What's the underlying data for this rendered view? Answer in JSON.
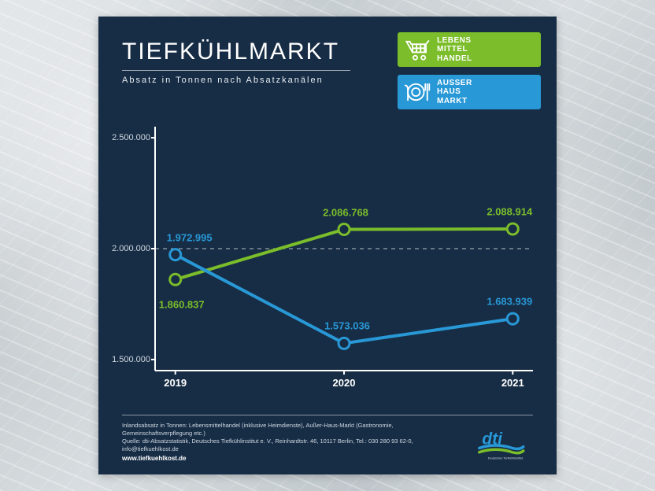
{
  "title": "TIEFKÜHLMARKT",
  "subtitle": "Absatz in Tonnen nach Absatzkanälen",
  "legend": [
    {
      "key": "retail",
      "label": "LEBENS\nMITTEL\nHANDEL",
      "color": "#7bbd2a",
      "icon": "cart"
    },
    {
      "key": "foodservice",
      "label": "AUSSER\nHAUS\nMARKT",
      "color": "#2898d6",
      "icon": "plate"
    }
  ],
  "chart": {
    "type": "line",
    "background_color": "#172d45",
    "axis_color": "#ffffff",
    "ref_line_color": "#ffffff",
    "line_width": 4,
    "marker_radius": 7,
    "marker_stroke": 3,
    "marker_fill": "#172d45",
    "x_categories": [
      "2019",
      "2020",
      "2021"
    ],
    "x_positions": [
      0,
      1,
      2
    ],
    "xlim": [
      -0.12,
      2.12
    ],
    "ylim": [
      1450000,
      2550000
    ],
    "yticks": [
      1500000,
      2000000,
      2500000
    ],
    "ytick_labels": [
      "1.500.000",
      "2.000.000",
      "2.500.000"
    ],
    "ref_line_y": 2000000,
    "series": [
      {
        "key": "retail",
        "color": "#7bbd2a",
        "values": [
          1860837,
          2086768,
          2088914
        ],
        "labels": [
          "1.860.837",
          "2.086.768",
          "2.088.914"
        ],
        "label_offsets": [
          [
            8,
            32
          ],
          [
            2,
            -22
          ],
          [
            -4,
            -22
          ]
        ]
      },
      {
        "key": "foodservice",
        "color": "#2898d6",
        "values": [
          1972995,
          1573036,
          1683939
        ],
        "labels": [
          "1.972.995",
          "1.573.036",
          "1.683.939"
        ],
        "label_offsets": [
          [
            18,
            -22
          ],
          [
            4,
            -22
          ],
          [
            -4,
            -22
          ]
        ]
      }
    ],
    "tick_font_size": 11,
    "xlabel_font_size": 13,
    "datalabel_font_size": 13
  },
  "footer": {
    "line1": "Inlandsabsatz in Tonnen: Lebensmittelhandel (inklusive Heimdienste), Außer-Haus-Markt (Gastronomie, Gemeinschaftsverpflegung etc.)",
    "line2": "Quelle: dti-Absatzstatistik, Deutsches Tiefkühlinstitut e. V., Reinhardtstr. 46, 10117 Berlin, Tel.: 030 280 93 62-0, info@tiefkuehlkost.de",
    "url": "www.tiefkuehlkost.de"
  },
  "logo": {
    "text": "dti",
    "tagline": "Deutsches Tiefkühlinstitut",
    "blue": "#2898d6",
    "green": "#7bbd2a"
  }
}
